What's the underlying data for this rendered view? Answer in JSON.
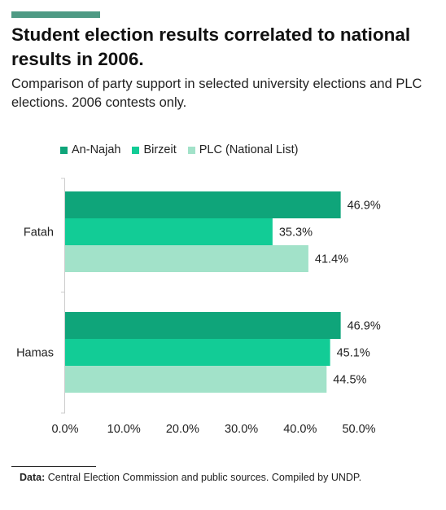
{
  "header": {
    "title": "Student election results correlated to national results in 2006.",
    "subtitle": "Comparison of party support in selected university elections and PLC elections. 2006 contests only.",
    "accent_color": "#4e9a84"
  },
  "footer": {
    "source_label": "Data:",
    "source_text": "Central Election Commission and public sources. Compiled by UNDP."
  },
  "chart_data": {
    "type": "bar",
    "orientation": "horizontal",
    "categories": [
      "Fatah",
      "Hamas"
    ],
    "series": [
      {
        "name": "An-Najah",
        "values": [
          46.9,
          46.9
        ],
        "labels": [
          "46.9%",
          "46.9%"
        ],
        "color": "#0fa57a"
      },
      {
        "name": "Birzeit",
        "values": [
          35.3,
          45.1
        ],
        "labels": [
          "35.3%",
          "45.1%"
        ],
        "color": "#12cc96"
      },
      {
        "name": "PLC (National List)",
        "values": [
          41.4,
          44.5
        ],
        "labels": [
          "41.4%",
          "44.5%"
        ],
        "color": "#a2e2c9"
      }
    ],
    "xlim": [
      0,
      50
    ],
    "xticks": [
      0,
      10,
      20,
      30,
      40,
      50
    ],
    "xtick_labels": [
      "0.0%",
      "10.0%",
      "20.0%",
      "30.0%",
      "40.0%",
      "50.0%"
    ],
    "legend_position": "top-left",
    "grid": false
  }
}
